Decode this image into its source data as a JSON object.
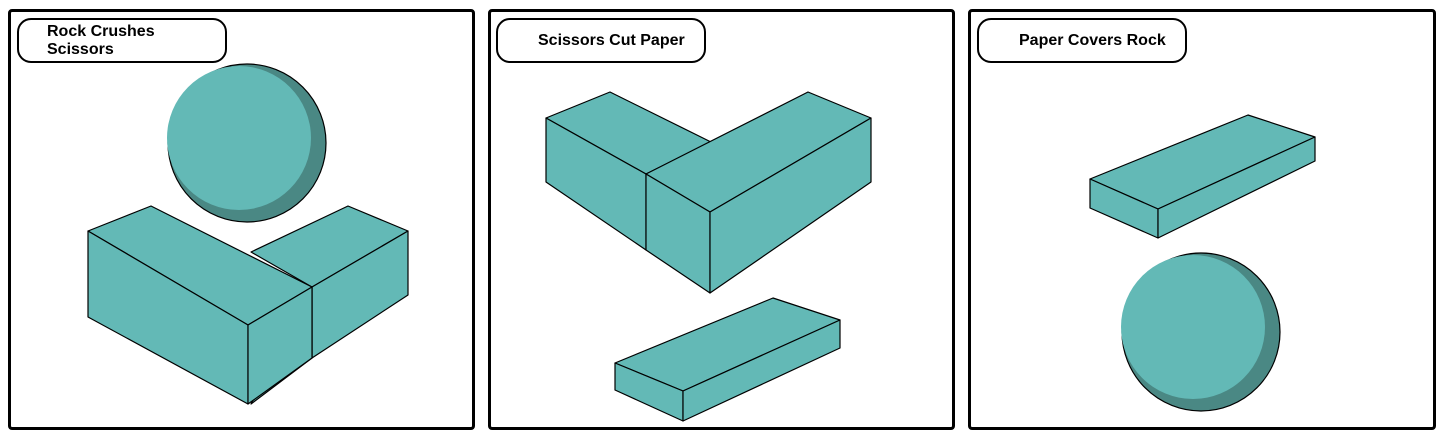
{
  "panels": [
    {
      "caption": "Rock Crushes Scissors"
    },
    {
      "caption": "Scissors Cut Paper"
    },
    {
      "caption": "Paper Covers Rock"
    }
  ],
  "colors": {
    "shape_fill": "#63b9b6",
    "shape_shadow": "#4a8884",
    "outline": "#000000"
  },
  "icons": [
    "rock-icon",
    "scissors-icon",
    "paper-icon"
  ]
}
